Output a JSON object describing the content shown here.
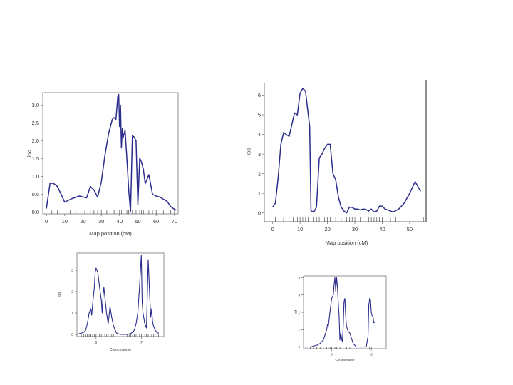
{
  "line_color": "#2b2d8c",
  "chart_data": [
    {
      "type": "line",
      "xlabel": "Map position (cM)",
      "ylabel": "lod",
      "xlim": [
        -2,
        72
      ],
      "ylim": [
        -0.05,
        3.35
      ],
      "xticks": [
        0,
        10,
        20,
        30,
        40,
        50,
        60,
        70
      ],
      "yticks": [
        0.0,
        0.5,
        1.0,
        1.5,
        2.0,
        2.5,
        3.0
      ],
      "ytick_labels": [
        "0.0",
        "0.5",
        "1.0",
        "1.5",
        "2.0",
        "2.5",
        "3.0"
      ],
      "markers": [
        1,
        3,
        6,
        13,
        16,
        21,
        24,
        26,
        28,
        30,
        33,
        37,
        39,
        40,
        41,
        43,
        44,
        45,
        47,
        49,
        51,
        52,
        53,
        55,
        56,
        58,
        60,
        62,
        64,
        66,
        68,
        70
      ],
      "x": [
        0,
        2,
        4,
        6,
        8,
        10,
        14,
        18,
        22,
        24,
        26,
        28,
        30,
        32,
        34,
        36,
        37,
        38,
        39,
        39.5,
        40,
        40.5,
        41,
        41.5,
        42,
        43,
        44,
        45,
        46,
        47,
        48,
        49,
        50,
        51,
        52,
        53,
        54,
        56,
        58,
        60,
        62,
        66,
        68,
        70,
        71
      ],
      "y": [
        0.1,
        0.82,
        0.8,
        0.72,
        0.5,
        0.28,
        0.38,
        0.45,
        0.4,
        0.72,
        0.62,
        0.42,
        0.85,
        1.6,
        2.2,
        2.6,
        2.65,
        2.6,
        3.25,
        3.3,
        2.4,
        3.0,
        1.8,
        2.35,
        2.1,
        2.3,
        1.5,
        0.6,
        0.0,
        2.15,
        2.1,
        2.0,
        0.2,
        1.52,
        1.4,
        1.2,
        0.8,
        1.05,
        0.5,
        0.45,
        0.42,
        0.3,
        0.15,
        0.08,
        0.05
      ]
    },
    {
      "type": "line",
      "xlabel": "Map position (cM)",
      "ylabel": "lod",
      "xlim": [
        -2,
        56
      ],
      "ylim": [
        -0.3,
        6.6
      ],
      "xticks": [
        0,
        10,
        20,
        30,
        40,
        50
      ],
      "yticks": [
        0,
        1,
        2,
        3,
        4,
        5,
        6
      ],
      "ytick_labels": [
        "0",
        "1",
        "2",
        "3",
        "4",
        "5",
        "6"
      ],
      "markers": [
        1,
        4,
        6,
        7.5,
        9,
        10,
        11,
        12,
        13,
        14,
        15,
        16,
        17,
        19,
        20,
        21,
        22,
        23,
        25,
        27,
        28,
        29,
        30,
        32,
        33,
        34,
        35,
        36,
        37,
        38,
        39,
        40,
        41,
        43,
        45,
        52,
        55
      ],
      "x": [
        0,
        1,
        2,
        3,
        4,
        5,
        6,
        7,
        8,
        9,
        10,
        11,
        12,
        13,
        13.5,
        14,
        15,
        16,
        17,
        18,
        19,
        20,
        21,
        22,
        23,
        24,
        25,
        26,
        27,
        28,
        29,
        30,
        31,
        32,
        33,
        34,
        35,
        36,
        37,
        38,
        39,
        40,
        41,
        42,
        44,
        46,
        48,
        50,
        52,
        54
      ],
      "y": [
        0.3,
        0.5,
        1.8,
        3.5,
        4.1,
        4.0,
        3.9,
        4.5,
        5.1,
        5.0,
        6.1,
        6.35,
        6.2,
        5.0,
        4.4,
        0.1,
        0.05,
        0.3,
        2.8,
        3.0,
        3.3,
        3.5,
        3.5,
        2.0,
        1.7,
        0.8,
        0.3,
        0.1,
        0.0,
        0.3,
        0.28,
        0.2,
        0.2,
        0.15,
        0.2,
        0.18,
        0.1,
        0.2,
        0.05,
        0.1,
        0.35,
        0.35,
        0.2,
        0.15,
        0.05,
        0.2,
        0.5,
        1.0,
        1.6,
        1.1
      ]
    },
    {
      "type": "line",
      "xlabel": "Chromosome",
      "ylabel": "lod",
      "xlim": [
        0,
        100
      ],
      "ylim": [
        -0.1,
        3.8
      ],
      "xticks": [
        22,
        74
      ],
      "xtick_labels": [
        "5",
        "7"
      ],
      "yticks": [
        0,
        1,
        2,
        3
      ],
      "ytick_labels": [
        "0",
        "1",
        "2",
        "3"
      ],
      "markers": [
        5,
        8,
        10,
        12,
        14,
        16,
        18,
        20,
        22,
        24,
        26,
        28,
        30,
        32,
        34,
        36,
        38,
        40,
        42,
        44,
        58,
        60,
        62,
        64,
        66,
        68,
        70,
        72,
        74,
        76,
        78,
        80,
        82,
        84,
        86,
        88,
        90,
        92,
        94
      ],
      "x": [
        0,
        4,
        8,
        10,
        12,
        14,
        16,
        17,
        18,
        20,
        21,
        22,
        24,
        26,
        28,
        29,
        30,
        31,
        32,
        34,
        36,
        38,
        40,
        42,
        44,
        45,
        46,
        50,
        58,
        62,
        64,
        66,
        68,
        70,
        71,
        72,
        73,
        74,
        75,
        76,
        78,
        80,
        82,
        84,
        85,
        86,
        87,
        88,
        90,
        92,
        94
      ],
      "y": [
        0.0,
        0.05,
        0.1,
        0.2,
        0.5,
        1.0,
        1.2,
        0.9,
        1.4,
        2.2,
        2.9,
        3.1,
        2.9,
        2.2,
        1.6,
        1.0,
        1.8,
        2.2,
        1.8,
        1.0,
        0.5,
        1.3,
        0.8,
        0.4,
        0.2,
        0.1,
        0.05,
        0.0,
        0.0,
        0.05,
        0.1,
        0.2,
        0.5,
        1.0,
        1.6,
        2.2,
        3.0,
        3.7,
        1.5,
        1.0,
        0.5,
        0.3,
        3.5,
        1.5,
        0.8,
        1.2,
        0.6,
        0.4,
        0.2,
        0.1,
        0.05
      ]
    },
    {
      "type": "line",
      "xlabel": "Chromosome",
      "ylabel": "lod",
      "xlim": [
        0,
        100
      ],
      "ylim": [
        -0.1,
        4.1
      ],
      "xticks": [
        34,
        82
      ],
      "xtick_labels": [
        "3",
        "10"
      ],
      "yticks": [
        0,
        1,
        2,
        3,
        4
      ],
      "ytick_labels": [
        "0",
        "1",
        "2",
        "3",
        "4"
      ],
      "markers": [
        8,
        12,
        16,
        20,
        24,
        28,
        30,
        32,
        34,
        36,
        38,
        40,
        42,
        44,
        48,
        52,
        56,
        78,
        80,
        82,
        84
      ],
      "x": [
        0,
        8,
        12,
        16,
        20,
        24,
        26,
        28,
        29,
        30,
        32,
        34,
        36,
        37,
        38,
        39,
        40,
        41,
        42,
        43,
        44,
        45,
        46,
        47,
        48,
        49,
        50,
        51,
        52,
        54,
        56,
        58,
        60,
        62,
        64,
        74,
        76,
        78,
        79,
        80,
        81,
        82,
        83,
        84,
        85,
        86
      ],
      "y": [
        0.0,
        0.0,
        0.05,
        0.1,
        0.2,
        0.4,
        0.7,
        1.0,
        1.3,
        1.2,
        2.0,
        2.8,
        3.0,
        3.6,
        4.0,
        3.2,
        4.0,
        3.5,
        2.6,
        1.8,
        0.4,
        0.8,
        0.5,
        0.3,
        1.2,
        2.6,
        2.8,
        1.8,
        1.2,
        0.9,
        0.8,
        0.5,
        0.2,
        0.1,
        0.0,
        0.0,
        0.05,
        0.6,
        2.4,
        2.8,
        2.7,
        2.0,
        1.8,
        1.8,
        1.4,
        1.4
      ]
    }
  ]
}
